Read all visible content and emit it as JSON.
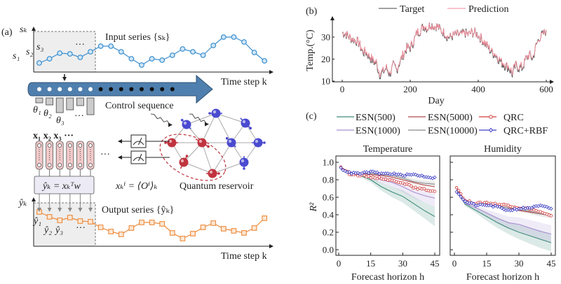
{
  "colors": {
    "input": "#3b8fcf",
    "output": "#ec8a3c",
    "arrow": "#4f7fae",
    "feature": "#f2c9c9",
    "red_spin": "#c0343f",
    "blue_spin": "#4a4ad0",
    "target": "#444444",
    "prediction": "#ef8a98"
  },
  "panel_a": {
    "label": "(a)",
    "input_axis_label": "sₖ",
    "input_title": "Input series {sₖ}",
    "input_labels": [
      "s₁",
      "s₂",
      "s₃",
      "···"
    ],
    "time_label": "Time step k",
    "control_label": "Control sequence",
    "theta_labels": [
      "θ₁",
      "θ₂",
      "θ₃",
      "···"
    ],
    "feature_labels": "x₁ x₂ x₃  ···",
    "more": "···",
    "readout_formula": "ŷₖ = xₖᵀw",
    "measurement_formula": "xₖⁱ = ⟨Oⁱ⟩ₖ",
    "reservoir_label": "Quantum reservoir",
    "output_axis_label": "ŷₖ",
    "output_title": "Output series {ŷₖ}",
    "output_labels": [
      "ŷ₁",
      "ŷ₂",
      "ŷ₃",
      "···"
    ],
    "output_time_label": "Time step k",
    "input_series": [
      13,
      19,
      27,
      26,
      21,
      29,
      37,
      37,
      29,
      19,
      10,
      19,
      17,
      24,
      33,
      29,
      24,
      38,
      50,
      50,
      43,
      28,
      16
    ],
    "output_series": [
      49,
      42,
      37,
      41,
      36,
      35,
      27,
      21,
      17,
      26,
      34,
      34,
      32,
      19,
      11,
      18,
      27,
      33,
      25,
      22,
      19,
      26,
      40
    ],
    "control_values": [
      7,
      10,
      21,
      17,
      11,
      24
    ],
    "processed_steps": 6,
    "pending_steps": 8
  },
  "chart_data": [
    {
      "panel": "(b)",
      "type": "line",
      "xlabel": "Day",
      "ylabel": "Temp.(°C)",
      "xlim": [
        0,
        600
      ],
      "ylim": [
        10,
        37
      ],
      "xticks": [
        0,
        200,
        400,
        600
      ],
      "yticks": [
        10,
        20,
        30
      ],
      "legend": [
        "Target",
        "Prediction"
      ],
      "legend_placement": "top",
      "x": [
        0,
        10,
        20,
        30,
        40,
        50,
        60,
        70,
        80,
        90,
        100,
        110,
        120,
        130,
        140,
        150,
        160,
        170,
        180,
        190,
        200,
        210,
        220,
        230,
        240,
        250,
        260,
        270,
        280,
        290,
        300,
        310,
        320,
        330,
        340,
        350,
        360,
        370,
        380,
        390,
        400,
        410,
        420,
        430,
        440,
        450,
        460,
        470,
        480,
        490,
        500,
        510,
        520,
        530,
        540,
        550,
        560,
        570,
        580,
        590,
        600
      ],
      "series": [
        {
          "name": "Target",
          "values": [
            32,
            31.5,
            30,
            29,
            28.5,
            27,
            23,
            23,
            21,
            19,
            18,
            13,
            14,
            16,
            13,
            17,
            15,
            19,
            22,
            25,
            25,
            28,
            32,
            33,
            35,
            34,
            36,
            35,
            35,
            33,
            32,
            30,
            30,
            31,
            31,
            31,
            32,
            31,
            32,
            32,
            31,
            29,
            27,
            25,
            23,
            22,
            20,
            18,
            17,
            16,
            13,
            17,
            16,
            16,
            20,
            22,
            20,
            26,
            30,
            31,
            33
          ]
        },
        {
          "name": "Prediction",
          "values": [
            32,
            31.8,
            30.3,
            29.3,
            28.7,
            27.4,
            23.6,
            23.4,
            21.5,
            19.6,
            18.6,
            13.8,
            14.5,
            16.4,
            13.6,
            17.4,
            15.6,
            19.4,
            22.4,
            25.3,
            25.5,
            28.3,
            32.2,
            33.2,
            35.1,
            34.2,
            35.8,
            35.1,
            34.9,
            33.2,
            32.1,
            30.4,
            30.3,
            31.1,
            31.2,
            31.1,
            31.9,
            31.2,
            32,
            31.9,
            31.1,
            29.3,
            27.4,
            25.5,
            23.5,
            22.4,
            20.5,
            18.6,
            17.6,
            16.6,
            14,
            17.4,
            16.6,
            16.5,
            20.2,
            22.1,
            20.6,
            26,
            29.6,
            31,
            33.4
          ]
        }
      ]
    },
    {
      "panel": "(c)",
      "type": "line",
      "legend": [
        "ESN(500)",
        "ESN(5000)",
        "QRC",
        "ESN(1000)",
        "ESN(10000)",
        "QRC+RBF"
      ],
      "legend_placement": "top",
      "xlabel": "Forecast horizon h",
      "ylabel": "R²",
      "xlim": [
        0,
        45
      ],
      "ylim": [
        -0.03,
        1.05
      ],
      "xticks": [
        0,
        15,
        30,
        45
      ],
      "yticks": [
        "0.0",
        "0.2",
        "0.4",
        "0.6",
        "0.8",
        "1.0"
      ],
      "h": [
        1,
        5,
        10,
        15,
        20,
        25,
        30,
        35,
        40,
        45
      ],
      "subplots": [
        {
          "title": "Temperature",
          "series": [
            {
              "name": "ESN(500)",
              "color": "#3d8c7a",
              "values": [
                0.93,
                0.88,
                0.85,
                0.8,
                0.72,
                0.66,
                0.61,
                0.53,
                0.45,
                0.38
              ],
              "band": [
                0.005,
                0.01,
                0.02,
                0.03,
                0.045,
                0.06,
                0.07,
                0.08,
                0.09,
                0.11
              ]
            },
            {
              "name": "ESN(1000)",
              "color": "#a98fd0",
              "values": [
                0.93,
                0.88,
                0.86,
                0.83,
                0.8,
                0.77,
                0.72,
                0.66,
                0.62,
                0.59
              ],
              "band": [
                0.005,
                0.01,
                0.02,
                0.03,
                0.04,
                0.05,
                0.06,
                0.07,
                0.08,
                0.1
              ]
            },
            {
              "name": "ESN(5000)",
              "color": "#b54848",
              "values": [
                0.93,
                0.88,
                0.87,
                0.86,
                0.85,
                0.83,
                0.8,
                0.77,
                0.74,
                0.72
              ]
            },
            {
              "name": "ESN(10000)",
              "color": "#8a8a8a",
              "values": [
                0.93,
                0.89,
                0.88,
                0.87,
                0.86,
                0.85,
                0.82,
                0.78,
                0.76,
                0.75
              ],
              "band": [
                0.003,
                0.005,
                0.01,
                0.015,
                0.02,
                0.025,
                0.03,
                0.03,
                0.03,
                0.03
              ]
            },
            {
              "name": "QRC",
              "color": "#d23c3c",
              "marker": "circle",
              "values": [
                0.94,
                0.87,
                0.85,
                0.83,
                0.82,
                0.79,
                0.77,
                0.71,
                0.69,
                0.67
              ]
            },
            {
              "name": "QRC+RBF",
              "color": "#3f3fc4",
              "marker": "diamond",
              "values": [
                0.93,
                0.88,
                0.87,
                0.89,
                0.87,
                0.87,
                0.85,
                0.86,
                0.84,
                0.82
              ]
            }
          ]
        },
        {
          "title": "Humidity",
          "series": [
            {
              "name": "ESN(500)",
              "color": "#3d8c7a",
              "values": [
                0.68,
                0.52,
                0.45,
                0.38,
                0.31,
                0.25,
                0.2,
                0.16,
                0.12,
                0.08
              ],
              "band": [
                0.01,
                0.02,
                0.03,
                0.05,
                0.06,
                0.07,
                0.08,
                0.09,
                0.1,
                0.1
              ]
            },
            {
              "name": "ESN(1000)",
              "color": "#a98fd0",
              "values": [
                0.68,
                0.53,
                0.48,
                0.42,
                0.36,
                0.31,
                0.29,
                0.25,
                0.21,
                0.18
              ],
              "band": [
                0.01,
                0.02,
                0.03,
                0.04,
                0.06,
                0.07,
                0.08,
                0.09,
                0.1,
                0.1
              ]
            },
            {
              "name": "ESN(5000)",
              "color": "#b54848",
              "values": [
                0.7,
                0.55,
                0.53,
                0.52,
                0.5,
                0.48,
                0.45,
                0.43,
                0.41,
                0.39
              ]
            },
            {
              "name": "ESN(10000)",
              "color": "#8a8a8a",
              "values": [
                0.7,
                0.55,
                0.53,
                0.52,
                0.5,
                0.48,
                0.46,
                0.44,
                0.41,
                0.39
              ],
              "band": [
                0.01,
                0.01,
                0.02,
                0.02,
                0.02,
                0.02,
                0.02,
                0.03,
                0.03,
                0.03
              ]
            },
            {
              "name": "QRC",
              "color": "#d23c3c",
              "marker": "circle",
              "values": [
                0.72,
                0.56,
                0.53,
                0.54,
                0.52,
                0.51,
                0.48,
                0.47,
                0.43,
                0.38
              ]
            },
            {
              "name": "QRC+RBF",
              "color": "#3f3fc4",
              "marker": "diamond",
              "values": [
                0.67,
                0.55,
                0.51,
                0.51,
                0.49,
                0.45,
                0.47,
                0.48,
                0.5,
                0.47
              ]
            }
          ]
        }
      ]
    }
  ]
}
